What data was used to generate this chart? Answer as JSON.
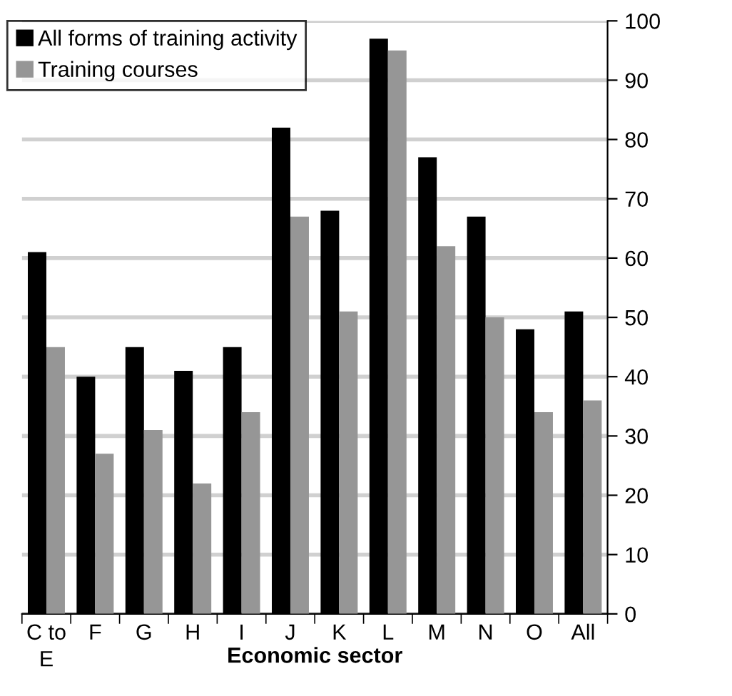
{
  "chart_data": {
    "type": "bar",
    "xlabel": "Economic sector",
    "categories": [
      "C to\nE",
      "F",
      "G",
      "H",
      "I",
      "J",
      "K",
      "L",
      "M",
      "N",
      "O",
      "All"
    ],
    "series": [
      {
        "name": "All forms of training activity",
        "color": "#000000",
        "values": [
          61,
          40,
          45,
          41,
          45,
          82,
          68,
          97,
          77,
          67,
          48,
          51
        ]
      },
      {
        "name": "Training courses",
        "color": "#969696",
        "values": [
          45,
          27,
          31,
          22,
          34,
          67,
          51,
          95,
          62,
          50,
          34,
          36
        ]
      }
    ],
    "ylim": [
      0,
      100
    ],
    "yticks": [
      0,
      10,
      20,
      30,
      40,
      50,
      60,
      70,
      80,
      90,
      100
    ],
    "grid": "y",
    "legend": "top left"
  }
}
